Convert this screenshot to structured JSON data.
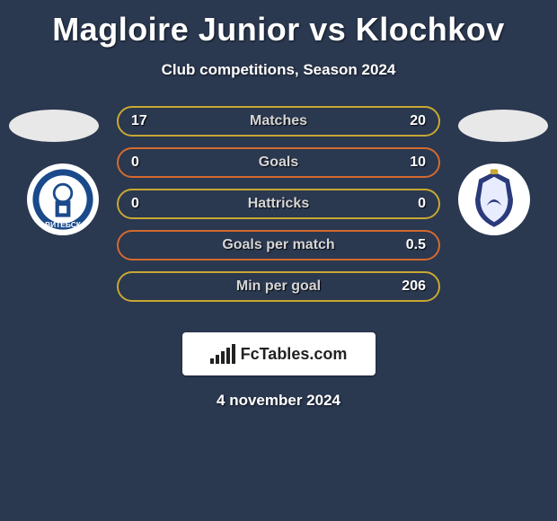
{
  "title": "Magloire Junior vs Klochkov",
  "subtitle": "Club competitions, Season 2024",
  "date": "4 november 2024",
  "brand": "FcTables.com",
  "colors": {
    "background": "#2a3850",
    "flag": "#e8e8e8",
    "crest_left_ring": "#1a4a8a",
    "crest_left_fill": "#ffffff",
    "crest_right_ring": "#2a3a7a",
    "crest_right_fill": "#e8ecff"
  },
  "rows": [
    {
      "label": "Matches",
      "left": "17",
      "right": "20",
      "border": "#c8a832",
      "text": "#d6d6d6"
    },
    {
      "label": "Goals",
      "left": "0",
      "right": "10",
      "border": "#d46a2e",
      "text": "#d6d6d6"
    },
    {
      "label": "Hattricks",
      "left": "0",
      "right": "0",
      "border": "#c8a832",
      "text": "#d6d6d6"
    },
    {
      "label": "Goals per match",
      "left": "",
      "right": "0.5",
      "border": "#d46a2e",
      "text": "#d6d6d6"
    },
    {
      "label": "Min per goal",
      "left": "",
      "right": "206",
      "border": "#c8a832",
      "text": "#d6d6d6"
    }
  ]
}
